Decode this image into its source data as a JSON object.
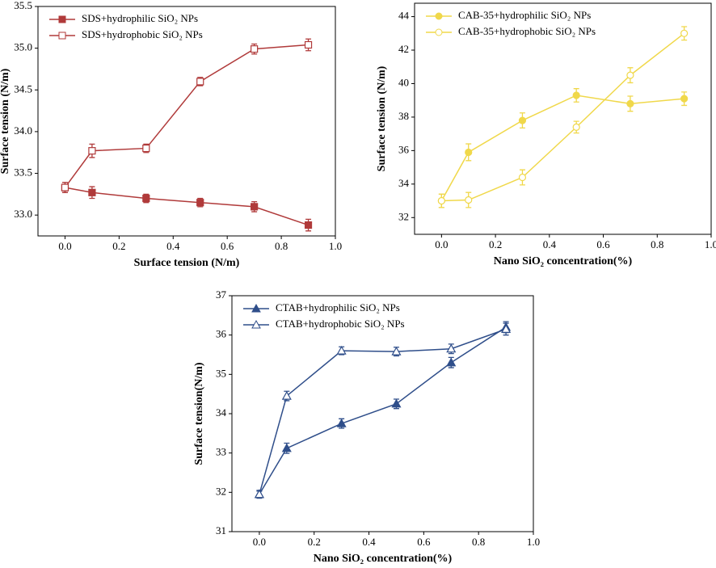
{
  "chart_data": [
    {
      "type": "line",
      "xlabel": "Surface tension (N/m)",
      "ylabel": "Surface tension (N/m)",
      "x": [
        0,
        0.1,
        0.3,
        0.5,
        0.7,
        0.9
      ],
      "xlim": [
        -0.1,
        1.0
      ],
      "xticks": [
        {
          "value": 0,
          "label": "0.0"
        },
        0.2,
        0.4,
        0.6,
        0.8,
        {
          "value": 1,
          "label": "1.0"
        }
      ],
      "ylim": [
        32.75,
        35.5
      ],
      "yticks": [
        {
          "value": 33,
          "label": "33.0"
        },
        33.5,
        {
          "value": 34,
          "label": "34.0"
        },
        34.5,
        {
          "value": 35,
          "label": "35.0"
        },
        35.5
      ],
      "legend": "upper left",
      "series": [
        {
          "name": "SDS+hydrophilic SiO₂ NPs",
          "color": "#b03a3a",
          "marker": "square",
          "filled": true,
          "values": [
            33.33,
            33.27,
            33.2,
            33.15,
            33.1,
            32.88
          ],
          "errors": [
            0.06,
            0.07,
            0.05,
            0.05,
            0.06,
            0.07
          ]
        },
        {
          "name": "SDS+hydrophobic SiO₂ NPs",
          "color": "#b03a3a",
          "marker": "square",
          "filled": false,
          "values": [
            33.33,
            33.77,
            33.8,
            34.6,
            34.99,
            35.04
          ],
          "errors": [
            0.06,
            0.08,
            0.05,
            0.05,
            0.06,
            0.07
          ]
        }
      ]
    },
    {
      "type": "line",
      "xlabel": "Nano SiO₂ concentration(%)",
      "ylabel": "Surface tension (N/m)",
      "x": [
        0,
        0.1,
        0.3,
        0.5,
        0.7,
        0.9
      ],
      "xlim": [
        -0.1,
        1.0
      ],
      "xticks": [
        {
          "value": 0,
          "label": "0.0"
        },
        0.2,
        0.4,
        0.6,
        0.8,
        {
          "value": 1,
          "label": "1.0"
        }
      ],
      "ylim": [
        31,
        44.8
      ],
      "yticks": [
        32,
        34,
        36,
        38,
        40,
        42,
        44
      ],
      "legend": "upper left",
      "series": [
        {
          "name": "CAB-35+hydrophilic SiO₂ NPs",
          "color": "#f0d84a",
          "marker": "circle",
          "filled": true,
          "values": [
            33,
            35.9,
            37.8,
            39.3,
            38.8,
            39.1
          ],
          "errors": [
            0.4,
            0.5,
            0.45,
            0.4,
            0.45,
            0.4
          ]
        },
        {
          "name": "CAB-35+hydrophobic SiO₂ NPs",
          "color": "#f0d84a",
          "marker": "circle",
          "filled": false,
          "values": [
            33,
            33.05,
            34.4,
            37.4,
            40.5,
            43
          ],
          "errors": [
            0.4,
            0.45,
            0.45,
            0.35,
            0.45,
            0.4
          ]
        }
      ]
    },
    {
      "type": "line",
      "xlabel": "Nano SiO₂ concentration(%)",
      "ylabel": "Surface tension(N/m)",
      "x": [
        0,
        0.1,
        0.3,
        0.5,
        0.7,
        0.9
      ],
      "xlim": [
        -0.1,
        1.0
      ],
      "xticks": [
        {
          "value": 0,
          "label": "0.0"
        },
        0.2,
        0.4,
        0.6,
        0.8,
        {
          "value": 1,
          "label": "1.0"
        }
      ],
      "ylim": [
        31,
        37
      ],
      "yticks": [
        31,
        32,
        33,
        34,
        35,
        36,
        37
      ],
      "legend": "upper left",
      "series": [
        {
          "name": "CTAB+hydrophilic SiO₂ NPs",
          "color": "#2f4e8a",
          "marker": "triangle",
          "filled": true,
          "values": [
            31.95,
            33.12,
            33.75,
            34.25,
            35.3,
            36.2
          ],
          "errors": [
            0.1,
            0.13,
            0.12,
            0.12,
            0.13,
            0.14
          ]
        },
        {
          "name": "CTAB+hydrophobic SiO₂ NPs",
          "color": "#2f4e8a",
          "marker": "triangle",
          "filled": false,
          "values": [
            31.95,
            34.45,
            35.6,
            35.58,
            35.65,
            36.15
          ],
          "errors": [
            0.08,
            0.12,
            0.1,
            0.11,
            0.12,
            0.15
          ]
        }
      ]
    }
  ]
}
